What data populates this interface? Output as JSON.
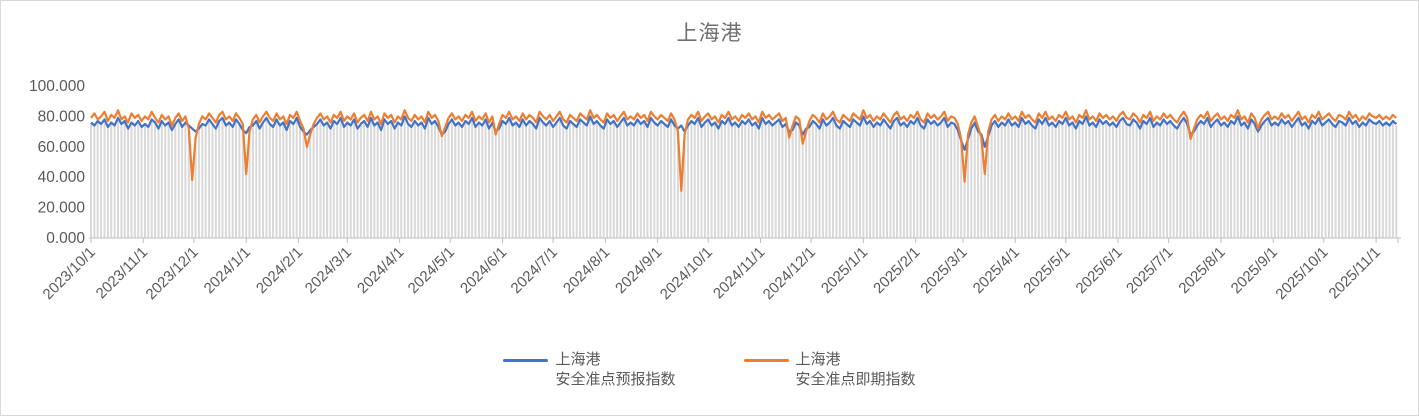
{
  "title": "上海港",
  "colors": {
    "forecast_line": "#4472C4",
    "spot_line": "#ED7D31",
    "drop_lines": "#D9D9D9",
    "axis": "#BFBFBF",
    "tick_label": "#595959",
    "title_text": "#6F6F6F",
    "chart_border": "#D9D9D9"
  },
  "y_axis": {
    "tick_labels": [
      "0.000",
      "20.000",
      "40.000",
      "60.000",
      "80.000",
      "100.000"
    ],
    "tick_values": [
      0,
      20,
      40,
      60,
      80,
      100
    ],
    "min": 0,
    "max": 100
  },
  "x_axis": {
    "tick_labels": [
      "2023/10/1",
      "2023/11/1",
      "2023/12/1",
      "2024/1/1",
      "2024/2/1",
      "2024/3/1",
      "2024/4/1",
      "2024/5/1",
      "2024/6/1",
      "2024/7/1",
      "2024/8/1",
      "2024/9/1",
      "2024/10/1",
      "2024/11/1",
      "2024/12/1",
      "2025/1/1",
      "2025/2/1",
      "2025/3/1",
      "2025/4/1",
      "2025/5/1",
      "2025/6/1",
      "2025/7/1",
      "2025/8/1",
      "2025/9/1",
      "2025/10/1",
      "2025/11/1"
    ],
    "tick_day_offsets": [
      0,
      31,
      61,
      92,
      123,
      152,
      183,
      213,
      244,
      274,
      305,
      336,
      366,
      397,
      427,
      458,
      489,
      517,
      548,
      578,
      609,
      639,
      670,
      701,
      731,
      762
    ]
  },
  "legend": [
    {
      "name_line1": "上海港",
      "name_line2": "安全准点预报指数",
      "color": "#4472C4"
    },
    {
      "name_line1": "上海港",
      "name_line2": "安全准点即期指数",
      "color": "#ED7D31"
    }
  ],
  "chart_data": {
    "type": "line",
    "title": "上海港",
    "xlabel": "",
    "ylabel": "",
    "ylim": [
      0,
      100
    ],
    "grid": "vertical-drop-lines",
    "legend_position": "bottom",
    "start_date": "2023/10/1",
    "end_date": "2025/11/13",
    "step_days": 2,
    "total_days": 775,
    "series": [
      {
        "name": "上海港 安全准点预报指数",
        "color": "#4472C4",
        "values": [
          76,
          74,
          77,
          75,
          78,
          73,
          76,
          74,
          79,
          75,
          77,
          72,
          76,
          74,
          77,
          73,
          75,
          73,
          78,
          76,
          72,
          77,
          74,
          76,
          71,
          75,
          78,
          73,
          76,
          74,
          72,
          70,
          72,
          75,
          74,
          78,
          75,
          72,
          77,
          79,
          74,
          76,
          73,
          78,
          75,
          71,
          69,
          73,
          74,
          77,
          72,
          76,
          79,
          75,
          73,
          78,
          74,
          76,
          71,
          77,
          75,
          79,
          73,
          70,
          68,
          71,
          73,
          75,
          78,
          74,
          76,
          72,
          77,
          75,
          79,
          73,
          76,
          74,
          78,
          72,
          75,
          77,
          73,
          79,
          74,
          76,
          71,
          78,
          75,
          77,
          72,
          76,
          74,
          80,
          75,
          73,
          77,
          74,
          76,
          72,
          79,
          75,
          77,
          73,
          68,
          70,
          75,
          78,
          74,
          76,
          73,
          77,
          75,
          79,
          73,
          76,
          74,
          78,
          72,
          76,
          70,
          72,
          77,
          75,
          79,
          74,
          76,
          73,
          78,
          74,
          77,
          75,
          72,
          79,
          76,
          74,
          77,
          73,
          76,
          79,
          74,
          72,
          77,
          75,
          73,
          78,
          76,
          74,
          80,
          75,
          77,
          74,
          72,
          78,
          75,
          77,
          73,
          76,
          79,
          74,
          76,
          74,
          78,
          75,
          77,
          73,
          79,
          76,
          74,
          77,
          75,
          73,
          78,
          74,
          72,
          74,
          70,
          74,
          77,
          75,
          79,
          73,
          76,
          78,
          74,
          76,
          72,
          77,
          75,
          79,
          74,
          76,
          73,
          77,
          75,
          78,
          74,
          76,
          72,
          79,
          75,
          77,
          74,
          76,
          78,
          73,
          75,
          70,
          71,
          76,
          74,
          68,
          72,
          73,
          77,
          75,
          72,
          78,
          74,
          76,
          79,
          74,
          72,
          77,
          75,
          73,
          78,
          76,
          74,
          80,
          75,
          77,
          73,
          76,
          74,
          78,
          75,
          72,
          77,
          79,
          74,
          76,
          73,
          77,
          75,
          79,
          74,
          72,
          78,
          75,
          77,
          74,
          76,
          79,
          73,
          76,
          75,
          71,
          64,
          58,
          65,
          72,
          76,
          70,
          68,
          60,
          67,
          74,
          77,
          73,
          76,
          74,
          78,
          74,
          76,
          73,
          79,
          75,
          77,
          74,
          72,
          78,
          75,
          79,
          74,
          76,
          73,
          77,
          75,
          79,
          74,
          76,
          72,
          77,
          75,
          80,
          74,
          76,
          73,
          78,
          75,
          77,
          74,
          76,
          73,
          77,
          79,
          75,
          74,
          78,
          76,
          72,
          77,
          75,
          79,
          73,
          76,
          74,
          78,
          75,
          77,
          74,
          72,
          76,
          79,
          75,
          68,
          70,
          74,
          77,
          75,
          79,
          73,
          76,
          78,
          74,
          76,
          73,
          77,
          75,
          80,
          74,
          76,
          72,
          78,
          75,
          70,
          74,
          77,
          79,
          74,
          76,
          74,
          78,
          75,
          77,
          73,
          76,
          79,
          74,
          76,
          72,
          77,
          75,
          79,
          74,
          76,
          78,
          75,
          73,
          77,
          76,
          74,
          79,
          75,
          77,
          73,
          76,
          74,
          78,
          76,
          75,
          77,
          74,
          76,
          74,
          77,
          75
        ]
      },
      {
        "name": "上海港 安全准点即期指数",
        "color": "#ED7D31",
        "values": [
          79,
          82,
          78,
          80,
          83,
          77,
          81,
          79,
          84,
          78,
          80,
          76,
          82,
          79,
          81,
          77,
          80,
          78,
          83,
          79,
          76,
          81,
          78,
          80,
          74,
          79,
          82,
          77,
          80,
          72,
          38,
          66,
          75,
          80,
          78,
          82,
          79,
          76,
          81,
          83,
          78,
          80,
          77,
          82,
          79,
          75,
          42,
          70,
          78,
          81,
          76,
          80,
          83,
          79,
          77,
          82,
          78,
          80,
          75,
          81,
          79,
          83,
          77,
          72,
          60,
          68,
          75,
          79,
          82,
          78,
          80,
          76,
          81,
          79,
          83,
          77,
          80,
          78,
          82,
          76,
          79,
          81,
          77,
          83,
          78,
          80,
          75,
          82,
          79,
          81,
          76,
          80,
          78,
          84,
          79,
          77,
          81,
          78,
          80,
          76,
          83,
          79,
          81,
          77,
          67,
          73,
          79,
          82,
          78,
          80,
          77,
          81,
          79,
          83,
          77,
          80,
          78,
          82,
          76,
          80,
          68,
          75,
          81,
          79,
          83,
          78,
          80,
          77,
          82,
          78,
          81,
          79,
          76,
          83,
          80,
          78,
          81,
          77,
          80,
          83,
          78,
          76,
          81,
          79,
          77,
          82,
          80,
          78,
          84,
          79,
          81,
          78,
          76,
          82,
          79,
          81,
          77,
          80,
          83,
          78,
          80,
          78,
          82,
          79,
          81,
          77,
          83,
          80,
          78,
          81,
          79,
          77,
          82,
          78,
          70,
          31,
          68,
          78,
          81,
          79,
          83,
          77,
          80,
          82,
          78,
          80,
          76,
          81,
          79,
          83,
          78,
          80,
          77,
          81,
          79,
          82,
          78,
          80,
          76,
          83,
          79,
          81,
          78,
          80,
          82,
          77,
          79,
          66,
          74,
          80,
          78,
          62,
          70,
          77,
          81,
          79,
          76,
          82,
          78,
          80,
          83,
          78,
          76,
          81,
          79,
          77,
          82,
          80,
          78,
          84,
          79,
          81,
          77,
          80,
          78,
          82,
          79,
          76,
          81,
          83,
          78,
          80,
          77,
          81,
          79,
          83,
          78,
          76,
          82,
          79,
          81,
          78,
          80,
          83,
          77,
          80,
          79,
          75,
          65,
          37,
          68,
          76,
          80,
          73,
          66,
          42,
          70,
          78,
          81,
          77,
          80,
          78,
          82,
          78,
          80,
          77,
          83,
          79,
          81,
          78,
          76,
          82,
          79,
          83,
          78,
          80,
          77,
          81,
          79,
          83,
          78,
          80,
          76,
          81,
          79,
          84,
          78,
          80,
          77,
          82,
          79,
          81,
          78,
          80,
          77,
          81,
          83,
          79,
          78,
          82,
          80,
          76,
          81,
          79,
          83,
          77,
          80,
          78,
          82,
          79,
          81,
          78,
          76,
          80,
          83,
          79,
          65,
          72,
          78,
          81,
          79,
          83,
          77,
          80,
          82,
          78,
          80,
          77,
          81,
          79,
          84,
          78,
          80,
          76,
          82,
          79,
          72,
          78,
          81,
          83,
          78,
          80,
          78,
          82,
          79,
          81,
          77,
          80,
          83,
          78,
          80,
          76,
          81,
          79,
          83,
          78,
          80,
          82,
          79,
          77,
          81,
          80,
          78,
          83,
          79,
          81,
          77,
          80,
          78,
          82,
          80,
          79,
          81,
          78,
          80,
          78,
          81,
          79
        ]
      }
    ]
  }
}
